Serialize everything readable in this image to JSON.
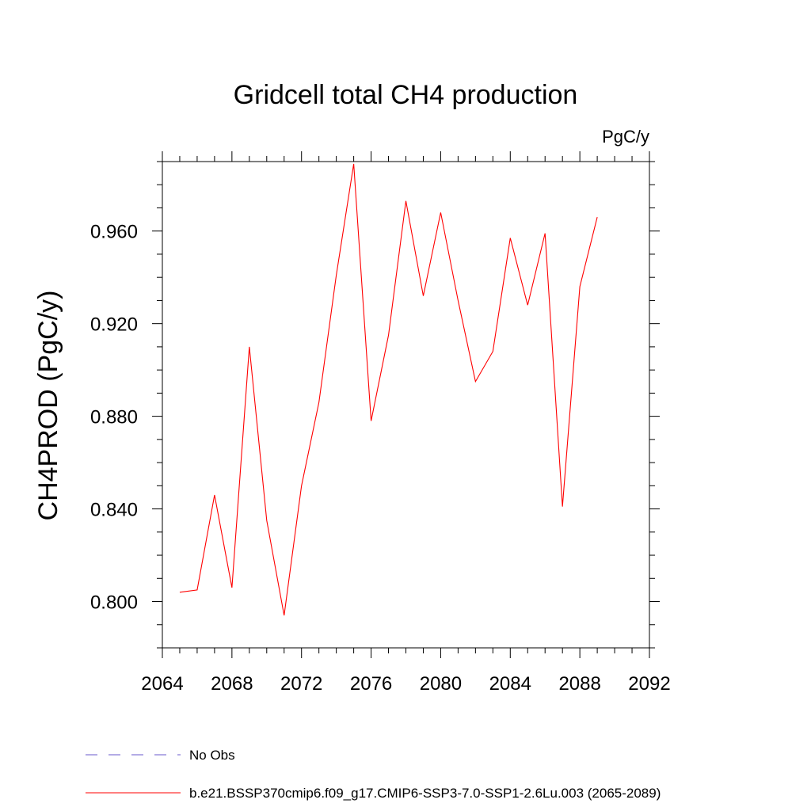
{
  "chart_data": {
    "type": "line",
    "title": "Gridcell total CH4 production",
    "units_label": "PgC/y",
    "ylabel": "CH4PROD  (PgC/y)",
    "xlabel": "",
    "xlim": [
      2064,
      2092
    ],
    "ylim": [
      0.78,
      0.99
    ],
    "x_ticks": [
      2064,
      2068,
      2072,
      2076,
      2080,
      2084,
      2088,
      2092
    ],
    "x_tick_labels": [
      "2064",
      "2068",
      "2072",
      "2076",
      "2080",
      "2084",
      "2088",
      "2092"
    ],
    "y_ticks": [
      0.8,
      0.84,
      0.88,
      0.92,
      0.96
    ],
    "y_tick_labels": [
      "0.800",
      "0.840",
      "0.880",
      "0.920",
      "0.960"
    ],
    "grid": false,
    "legend_position": "bottom-left",
    "series": [
      {
        "name": "b.e21.BSSP370cmip6.f09_g17.CMIP6-SSP3-7.0-SSP1-2.6Lu.003 (2065-2089)",
        "color": "#ff0000",
        "style": "solid",
        "x": [
          2065,
          2066,
          2067,
          2068,
          2069,
          2070,
          2071,
          2072,
          2073,
          2074,
          2075,
          2076,
          2077,
          2078,
          2079,
          2080,
          2081,
          2082,
          2083,
          2084,
          2085,
          2086,
          2087,
          2088,
          2089
        ],
        "y": [
          0.804,
          0.805,
          0.846,
          0.806,
          0.91,
          0.835,
          0.794,
          0.85,
          0.886,
          0.941,
          0.989,
          0.878,
          0.915,
          0.973,
          0.932,
          0.968,
          0.93,
          0.895,
          0.908,
          0.957,
          0.928,
          0.959,
          0.841,
          0.936,
          0.966
        ]
      }
    ],
    "legend": [
      {
        "label": "No Obs",
        "color": "#6a5acd",
        "style": "dashed"
      },
      {
        "label": "b.e21.BSSP370cmip6.f09_g17.CMIP6-SSP3-7.0-SSP1-2.6Lu.003 (2065-2089)",
        "color": "#ff0000",
        "style": "solid"
      }
    ]
  }
}
